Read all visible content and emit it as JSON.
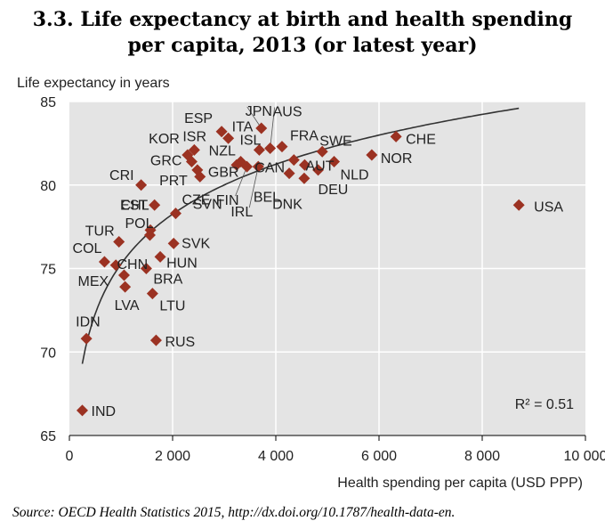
{
  "title_line1": "3.3. Life expectancy at birth and health spending",
  "title_line2": "per capita, 2013 (or latest year)",
  "source": "Source: OECD Health Statistics 2015, http://dx.doi.org/10.1787/health-data-en.",
  "colors": {
    "marker": "#9b3222",
    "plot_bg": "#e4e4e4",
    "grid": "#ffffff",
    "curve": "#333333"
  },
  "chart_data": {
    "type": "scatter",
    "xlabel": "Health spending per capita (USD PPP)",
    "ylabel": "Life expectancy in years",
    "xlim": [
      0,
      10000
    ],
    "ylim": [
      65,
      85
    ],
    "xticks": [
      0,
      2000,
      4000,
      6000,
      8000,
      10000
    ],
    "xtick_labels": [
      "0",
      "2 000",
      "4 000",
      "6 000",
      "8 000",
      "10 000"
    ],
    "yticks": [
      65,
      70,
      75,
      80,
      85
    ],
    "grid": true,
    "trendline": "logarithmic",
    "annotation": "R² = 0.51",
    "points": [
      {
        "label": "IND",
        "x": 250,
        "y": 66.5
      },
      {
        "label": "IDN",
        "x": 330,
        "y": 70.8
      },
      {
        "label": "COL",
        "x": 680,
        "y": 75.4
      },
      {
        "label": "MEX",
        "x": 900,
        "y": 75.2
      },
      {
        "label": "TUR",
        "x": 960,
        "y": 76.6
      },
      {
        "label": "CHN",
        "x": 1060,
        "y": 74.6
      },
      {
        "label": "LVA",
        "x": 1080,
        "y": 73.9
      },
      {
        "label": "BRA",
        "x": 1490,
        "y": 75.0
      },
      {
        "label": "LTU",
        "x": 1610,
        "y": 73.5
      },
      {
        "label": "RUS",
        "x": 1680,
        "y": 70.7
      },
      {
        "label": "HUN",
        "x": 1760,
        "y": 75.7
      },
      {
        "label": "POL",
        "x": 1560,
        "y": 77.0
      },
      {
        "label": "EST",
        "x": 1570,
        "y": 77.3
      },
      {
        "label": "CRI",
        "x": 1390,
        "y": 80.0
      },
      {
        "label": "CHL",
        "x": 1650,
        "y": 78.8
      },
      {
        "label": "SVK",
        "x": 2020,
        "y": 76.5
      },
      {
        "label": "CZE",
        "x": 2060,
        "y": 78.3
      },
      {
        "label": "KOR",
        "x": 2290,
        "y": 81.8
      },
      {
        "label": "ISR",
        "x": 2420,
        "y": 82.1
      },
      {
        "label": "GRC",
        "x": 2370,
        "y": 81.4
      },
      {
        "label": "PRT",
        "x": 2480,
        "y": 80.9
      },
      {
        "label": "SVN",
        "x": 2530,
        "y": 80.5
      },
      {
        "label": "ESP",
        "x": 2950,
        "y": 83.2
      },
      {
        "label": "ITA",
        "x": 3080,
        "y": 82.8
      },
      {
        "label": "NZL",
        "x": 3240,
        "y": 81.2
      },
      {
        "label": "GBR",
        "x": 3320,
        "y": 81.4
      },
      {
        "label": "FIN",
        "x": 3440,
        "y": 81.1
      },
      {
        "label": "JPN",
        "x": 3720,
        "y": 83.4
      },
      {
        "label": "ISL",
        "x": 3680,
        "y": 82.1
      },
      {
        "label": "IRL",
        "x": 3660,
        "y": 81.1
      },
      {
        "label": "AUS",
        "x": 3890,
        "y": 82.2
      },
      {
        "label": "FRA",
        "x": 4120,
        "y": 82.3
      },
      {
        "label": "CAN",
        "x": 4350,
        "y": 81.5
      },
      {
        "label": "BEL",
        "x": 4260,
        "y": 80.7
      },
      {
        "label": "DNK",
        "x": 4550,
        "y": 80.4
      },
      {
        "label": "AUT",
        "x": 4560,
        "y": 81.2
      },
      {
        "label": "SWE",
        "x": 4900,
        "y": 82.0
      },
      {
        "label": "DEU",
        "x": 4820,
        "y": 80.9
      },
      {
        "label": "NLD",
        "x": 5130,
        "y": 81.4
      },
      {
        "label": "NOR",
        "x": 5860,
        "y": 81.8
      },
      {
        "label": "CHE",
        "x": 6330,
        "y": 82.9
      },
      {
        "label": "USA",
        "x": 8710,
        "y": 78.8
      }
    ]
  }
}
